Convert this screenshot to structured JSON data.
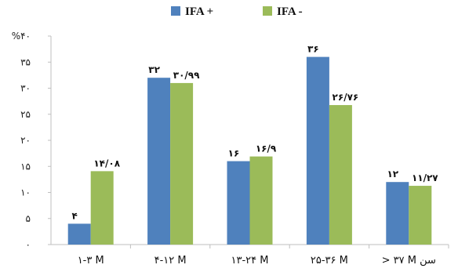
{
  "chart_data": {
    "type": "bar",
    "categories": [
      "1-3 M",
      "4-12 M",
      "13-24 M",
      "25-36 M",
      "> 37 M سن"
    ],
    "category_labels": [
      "۱-۳ M",
      "۴-۱۲ M",
      "۱۳-۲۴ M",
      "۲۵-۳۶ M",
      "> ۳۷ M سن"
    ],
    "series": [
      {
        "name": "IFA +",
        "values": [
          4,
          32,
          16,
          36,
          12
        ],
        "labels": [
          "۴",
          "۳۲",
          "۱۶",
          "۳۶",
          "۱۲"
        ],
        "color": "#4f81bd"
      },
      {
        "name": "IFA -",
        "values": [
          14.08,
          30.99,
          16.9,
          26.76,
          11.27
        ],
        "labels": [
          "۱۴/۰۸",
          "۳۰/۹۹",
          "۱۶/۹",
          "۲۶/۷۶",
          "۱۱/۲۷"
        ],
        "color": "#9bbb59"
      }
    ],
    "ylim": [
      0,
      40
    ],
    "ytick_values": [
      0,
      5,
      10,
      15,
      20,
      25,
      30,
      35,
      40
    ],
    "ytick_labels": [
      "۰",
      "۵",
      "۱۰",
      "۱۵",
      "۲۰",
      "۲۵",
      "۳۰",
      "۳۵",
      "%۴۰"
    ],
    "grid": false,
    "legend_position": "top-center",
    "axis_color": "#bfbfbf"
  }
}
